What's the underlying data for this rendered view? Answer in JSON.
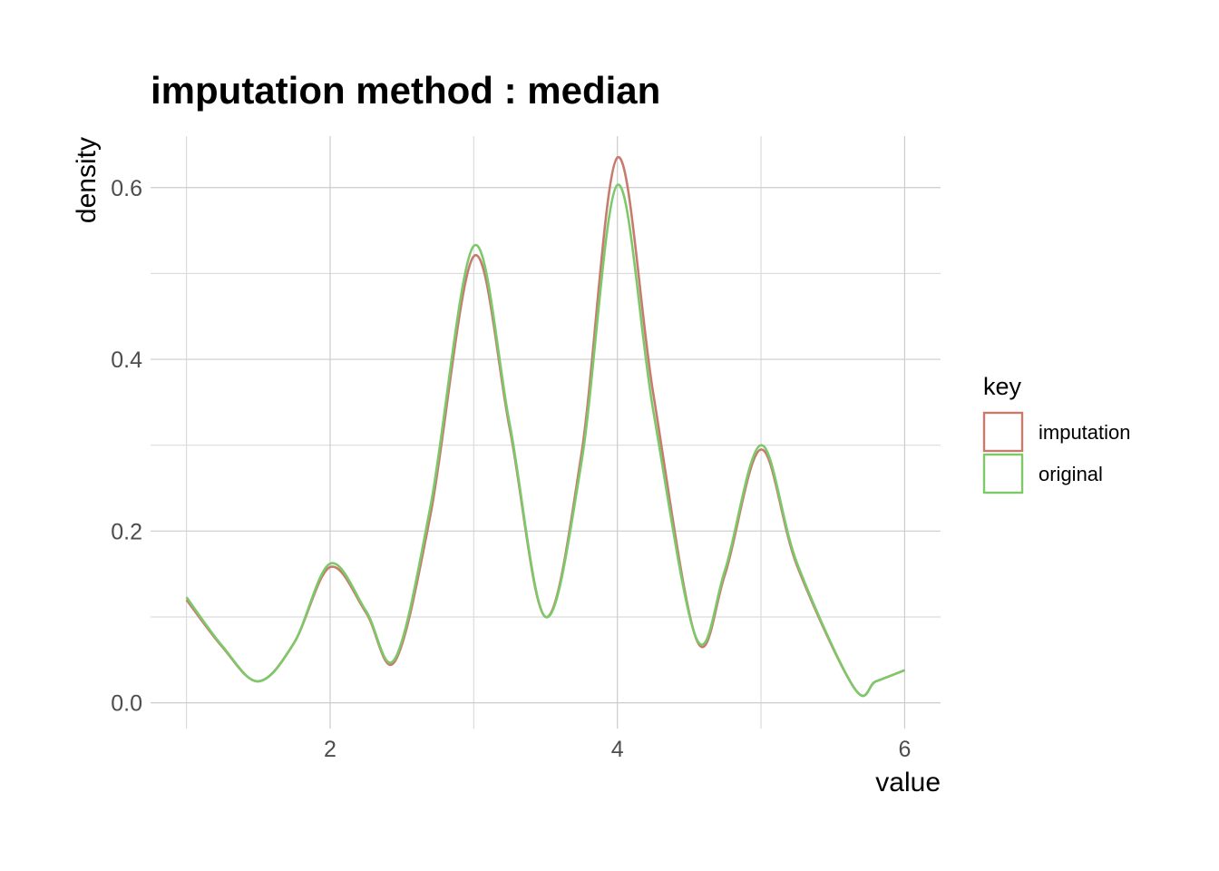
{
  "chart_data": {
    "type": "line",
    "title": "imputation method : median",
    "xlabel": "value",
    "ylabel": "density",
    "xlim": [
      0.75,
      6.25
    ],
    "ylim": [
      -0.03,
      0.66
    ],
    "x_ticks": [
      2,
      4,
      6
    ],
    "x_tick_labels": [
      "2",
      "4",
      "6"
    ],
    "y_ticks": [
      0.0,
      0.2,
      0.4,
      0.6
    ],
    "y_tick_labels": [
      "0.0",
      "0.2",
      "0.4",
      "0.6"
    ],
    "grid": true,
    "legend": {
      "title": "key",
      "position": "right"
    },
    "series": [
      {
        "name": "imputation",
        "color": "#c77b6f",
        "points": [
          [
            1.0,
            0.12
          ],
          [
            1.25,
            0.065
          ],
          [
            1.5,
            0.025
          ],
          [
            1.75,
            0.07
          ],
          [
            2.0,
            0.158
          ],
          [
            2.25,
            0.105
          ],
          [
            2.45,
            0.048
          ],
          [
            2.7,
            0.22
          ],
          [
            3.0,
            0.52
          ],
          [
            3.25,
            0.32
          ],
          [
            3.5,
            0.1
          ],
          [
            3.75,
            0.29
          ],
          [
            4.0,
            0.635
          ],
          [
            4.25,
            0.36
          ],
          [
            4.55,
            0.074
          ],
          [
            4.75,
            0.15
          ],
          [
            5.0,
            0.295
          ],
          [
            5.25,
            0.16
          ],
          [
            5.65,
            0.017
          ],
          [
            5.8,
            0.025
          ],
          [
            6.0,
            0.038
          ]
        ]
      },
      {
        "name": "original",
        "color": "#7dc96a",
        "points": [
          [
            1.0,
            0.123
          ],
          [
            1.25,
            0.066
          ],
          [
            1.5,
            0.025
          ],
          [
            1.75,
            0.07
          ],
          [
            2.0,
            0.162
          ],
          [
            2.25,
            0.107
          ],
          [
            2.45,
            0.051
          ],
          [
            2.7,
            0.23
          ],
          [
            3.0,
            0.532
          ],
          [
            3.25,
            0.325
          ],
          [
            3.5,
            0.1
          ],
          [
            3.75,
            0.28
          ],
          [
            4.0,
            0.603
          ],
          [
            4.25,
            0.34
          ],
          [
            4.55,
            0.075
          ],
          [
            4.75,
            0.155
          ],
          [
            5.0,
            0.3
          ],
          [
            5.25,
            0.163
          ],
          [
            5.65,
            0.017
          ],
          [
            5.8,
            0.025
          ],
          [
            6.0,
            0.038
          ]
        ]
      }
    ]
  }
}
